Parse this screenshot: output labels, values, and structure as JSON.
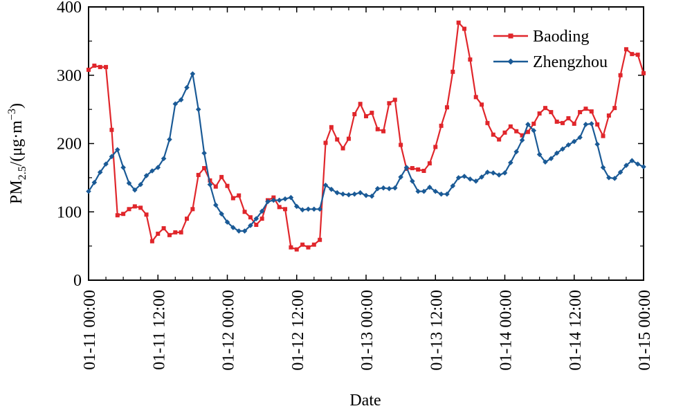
{
  "chart_data": {
    "type": "line",
    "xlabel": "Date",
    "ylabel": {
      "base": "PM",
      "sub": "2.5",
      "rest": "/(μg·m",
      "sup": "−3",
      "close": ")"
    },
    "ylim": [
      0,
      400
    ],
    "yticks": [
      0,
      100,
      200,
      300,
      400
    ],
    "xlim": [
      "01-11 00:00",
      "01-15 00:00"
    ],
    "xticks": [
      "01-11 00:00",
      "01-11 12:00",
      "01-12 00:00",
      "01-12 12:00",
      "01-13 00:00",
      "01-13 12:00",
      "01-14 00:00",
      "01-14 12:00",
      "01-15 00:00"
    ],
    "x": [
      "01-11 00:00",
      "01-11 01:00",
      "01-11 02:00",
      "01-11 03:00",
      "01-11 04:00",
      "01-11 05:00",
      "01-11 06:00",
      "01-11 07:00",
      "01-11 08:00",
      "01-11 09:00",
      "01-11 10:00",
      "01-11 11:00",
      "01-11 12:00",
      "01-11 13:00",
      "01-11 14:00",
      "01-11 15:00",
      "01-11 16:00",
      "01-11 17:00",
      "01-11 18:00",
      "01-11 19:00",
      "01-11 20:00",
      "01-11 21:00",
      "01-11 22:00",
      "01-11 23:00",
      "01-12 00:00",
      "01-12 01:00",
      "01-12 02:00",
      "01-12 03:00",
      "01-12 04:00",
      "01-12 05:00",
      "01-12 06:00",
      "01-12 07:00",
      "01-12 08:00",
      "01-12 09:00",
      "01-12 10:00",
      "01-12 11:00",
      "01-12 12:00",
      "01-12 13:00",
      "01-12 14:00",
      "01-12 15:00",
      "01-12 16:00",
      "01-12 17:00",
      "01-12 18:00",
      "01-12 19:00",
      "01-12 20:00",
      "01-12 21:00",
      "01-12 22:00",
      "01-12 23:00",
      "01-13 00:00",
      "01-13 01:00",
      "01-13 02:00",
      "01-13 03:00",
      "01-13 04:00",
      "01-13 05:00",
      "01-13 06:00",
      "01-13 07:00",
      "01-13 08:00",
      "01-13 09:00",
      "01-13 10:00",
      "01-13 11:00",
      "01-13 12:00",
      "01-13 13:00",
      "01-13 14:00",
      "01-13 15:00",
      "01-13 16:00",
      "01-13 17:00",
      "01-13 18:00",
      "01-13 19:00",
      "01-13 20:00",
      "01-13 21:00",
      "01-13 22:00",
      "01-13 23:00",
      "01-14 00:00",
      "01-14 01:00",
      "01-14 02:00",
      "01-14 03:00",
      "01-14 04:00",
      "01-14 05:00",
      "01-14 06:00",
      "01-14 07:00",
      "01-14 08:00",
      "01-14 09:00",
      "01-14 10:00",
      "01-14 11:00",
      "01-14 12:00",
      "01-14 13:00",
      "01-14 14:00",
      "01-14 15:00",
      "01-14 16:00",
      "01-14 17:00",
      "01-14 18:00",
      "01-14 19:00",
      "01-14 20:00",
      "01-14 21:00",
      "01-14 22:00",
      "01-14 23:00",
      "01-15 00:00"
    ],
    "series": [
      {
        "name": "Baoding",
        "color": "#e0262b",
        "marker": "square",
        "values": [
          308,
          314,
          312,
          312,
          220,
          95,
          97,
          104,
          108,
          106,
          96,
          57,
          68,
          76,
          66,
          70,
          70,
          90,
          104,
          154,
          164,
          146,
          137,
          151,
          138,
          120,
          124,
          100,
          92,
          81,
          90,
          117,
          121,
          107,
          104,
          48,
          45,
          52,
          48,
          52,
          59,
          201,
          224,
          206,
          193,
          207,
          243,
          258,
          240,
          245,
          221,
          218,
          259,
          264,
          198,
          163,
          164,
          162,
          160,
          171,
          195,
          226,
          253,
          305,
          377,
          368,
          323,
          268,
          257,
          230,
          213,
          206,
          216,
          225,
          218,
          212,
          217,
          229,
          244,
          252,
          246,
          232,
          230,
          237,
          229,
          246,
          251,
          247,
          228,
          211,
          241,
          252,
          300,
          338,
          331,
          330,
          303
        ]
      },
      {
        "name": "Zhengzhou",
        "color": "#1a5a96",
        "marker": "diamond",
        "values": [
          130,
          143,
          158,
          170,
          181,
          191,
          165,
          142,
          132,
          140,
          153,
          160,
          165,
          178,
          206,
          258,
          264,
          282,
          302,
          250,
          186,
          140,
          110,
          97,
          85,
          77,
          72,
          72,
          80,
          90,
          101,
          115,
          117,
          117,
          119,
          121,
          108,
          103,
          104,
          104,
          104,
          139,
          133,
          128,
          126,
          125,
          126,
          128,
          124,
          123,
          134,
          135,
          134,
          135,
          151,
          165,
          145,
          130,
          130,
          136,
          130,
          126,
          126,
          138,
          150,
          152,
          148,
          145,
          151,
          158,
          157,
          154,
          157,
          172,
          188,
          205,
          228,
          219,
          184,
          173,
          178,
          186,
          192,
          198,
          203,
          209,
          228,
          229,
          199,
          165,
          150,
          149,
          158,
          168,
          175,
          170,
          166
        ]
      }
    ],
    "legend": {
      "position": "top-right"
    }
  }
}
